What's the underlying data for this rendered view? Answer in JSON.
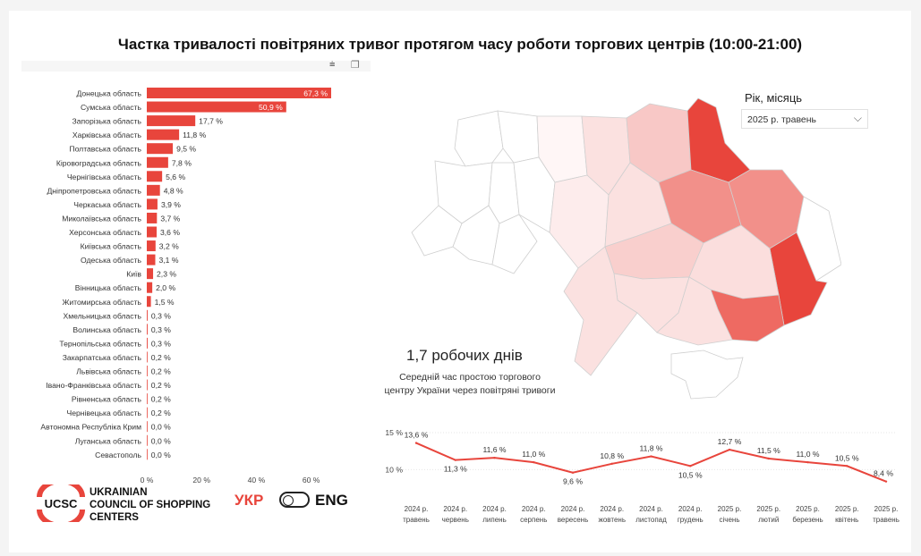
{
  "title": "Частка тривалості повітряних тривог протягом часу роботи торгових центрів (10:00-21:00)",
  "filter": {
    "label": "Рік, місяць",
    "selected": "2025 р. травень"
  },
  "kpi": {
    "value": "1,7 робочих днів",
    "description_line1": "Середній час простою торгового",
    "description_line2": "центру України через повітряні тривоги"
  },
  "branding": {
    "logo_letters": "UCSC",
    "name_line1": "UKRAINIAN",
    "name_line2": "COUNCIL OF SHOPPING",
    "name_line3": "CENTERS"
  },
  "language": {
    "ukr": "УКР",
    "eng": "ENG"
  },
  "icons": [
    "filter-icon",
    "focus-mode-icon",
    "chevron-down-icon",
    "language-toggle-icon"
  ],
  "colors": {
    "bar": "#e8453c",
    "accent": "#e8453c",
    "map_low": "#fbe4e3",
    "map_high": "#e8453c"
  },
  "chart_data": [
    {
      "type": "bar",
      "orientation": "horizontal",
      "categories": [
        "Донецька область",
        "Сумська область",
        "Запорізька область",
        "Харківська область",
        "Полтавська область",
        "Кіровоградська область",
        "Чернігівська область",
        "Дніпропетровська область",
        "Черкаська область",
        "Миколаївська область",
        "Херсонська область",
        "Київська область",
        "Одеська область",
        "Київ",
        "Вінницька область",
        "Житомирська область",
        "Хмельницька область",
        "Волинська область",
        "Тернопільська область",
        "Закарпатська область",
        "Львівська область",
        "Івано-Франківська область",
        "Рівненська область",
        "Чернівецька область",
        "Автономна Республіка Крим",
        "Луганська область",
        "Севастополь"
      ],
      "values": [
        67.3,
        50.9,
        17.7,
        11.8,
        9.5,
        7.8,
        5.6,
        4.8,
        3.9,
        3.7,
        3.6,
        3.2,
        3.1,
        2.3,
        2.0,
        1.5,
        0.3,
        0.3,
        0.3,
        0.2,
        0.2,
        0.2,
        0.2,
        0.2,
        0.0,
        0.0,
        0.0
      ],
      "value_labels": [
        "67,3 %",
        "50,9 %",
        "17,7 %",
        "11,8 %",
        "9,5 %",
        "7,8 %",
        "5,6 %",
        "4,8 %",
        "3,9 %",
        "3,7 %",
        "3,6 %",
        "3,2 %",
        "3,1 %",
        "2,3 %",
        "2,0 %",
        "1,5 %",
        "0,3 %",
        "0,3 %",
        "0,3 %",
        "0,2 %",
        "0,2 %",
        "0,2 %",
        "0,2 %",
        "0,2 %",
        "0,0 %",
        "0,0 %",
        "0,0 %"
      ],
      "xlim": [
        0,
        67.3
      ],
      "xticks": [
        0,
        20,
        40,
        60
      ],
      "xtick_labels": [
        "0 %",
        "20 %",
        "40 %",
        "60 %"
      ],
      "grid": false
    },
    {
      "type": "line",
      "categories_line1": [
        "2024 р.",
        "2024 р.",
        "2024 р.",
        "2024 р.",
        "2024 р.",
        "2024 р.",
        "2024 р.",
        "2024 р.",
        "2025 р.",
        "2025 р.",
        "2025 р.",
        "2025 р.",
        "2025 р."
      ],
      "categories_line2": [
        "травень",
        "червень",
        "липень",
        "серпень",
        "вересень",
        "жовтень",
        "листопад",
        "грудень",
        "січень",
        "лютий",
        "березень",
        "квітень",
        "травень"
      ],
      "values": [
        13.6,
        11.3,
        11.6,
        11.0,
        9.6,
        10.8,
        11.8,
        10.5,
        12.7,
        11.5,
        11.0,
        10.5,
        8.4
      ],
      "value_labels": [
        "13,6 %",
        "11,3 %",
        "11,6 %",
        "11,0 %",
        "9,6 %",
        "10,8 %",
        "11,8 %",
        "10,5 %",
        "12,7 %",
        "11,5 %",
        "11,0 %",
        "10,5 %",
        "8,4 %"
      ],
      "yticks": [
        10,
        15
      ],
      "ytick_labels": [
        "10 %",
        "15 %"
      ],
      "ylim": [
        8,
        15
      ],
      "grid": true
    }
  ]
}
